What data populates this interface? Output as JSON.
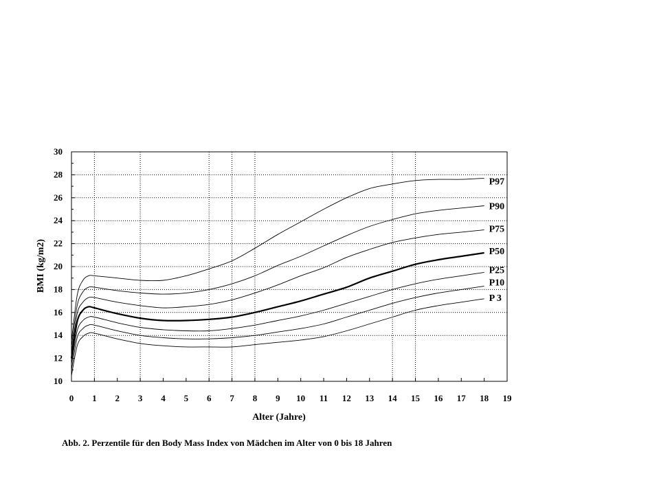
{
  "caption": "Abb. 2. Perzentile für den Body Mass Index von Mädchen im Alter von 0 bis 18 Jahren",
  "chart_data": {
    "type": "line",
    "xlabel": "Alter (Jahre)",
    "ylabel": "BMI (kg/m2)",
    "xlim": [
      0,
      19
    ],
    "ylim": [
      10,
      30
    ],
    "x_ticks": [
      0,
      1,
      2,
      3,
      4,
      5,
      6,
      7,
      8,
      9,
      10,
      11,
      12,
      13,
      14,
      15,
      16,
      17,
      18,
      19
    ],
    "y_ticks": [
      10,
      12,
      14,
      16,
      18,
      20,
      22,
      24,
      26,
      28,
      30
    ],
    "horizontal_grid": [
      14,
      16,
      18,
      20,
      22,
      24,
      26,
      28
    ],
    "vertical_grid": [
      1,
      3,
      6,
      7,
      8,
      14,
      15
    ],
    "grid_style": "dotted",
    "series": [
      {
        "name": "P97",
        "emphasis": false,
        "x": [
          0,
          0.25,
          0.5,
          0.75,
          1,
          2,
          3,
          4,
          5,
          6,
          7,
          8,
          9,
          10,
          11,
          12,
          13,
          14,
          15,
          16,
          17,
          18
        ],
        "values": [
          13.5,
          17.5,
          18.8,
          19.2,
          19.2,
          19.0,
          18.8,
          18.8,
          19.2,
          19.8,
          20.5,
          21.6,
          22.8,
          23.9,
          25.0,
          26.0,
          26.8,
          27.2,
          27.5,
          27.6,
          27.6,
          27.7
        ]
      },
      {
        "name": "P90",
        "emphasis": false,
        "x": [
          0,
          0.25,
          0.5,
          0.75,
          1,
          2,
          3,
          4,
          5,
          6,
          7,
          8,
          9,
          10,
          11,
          12,
          13,
          14,
          15,
          16,
          17,
          18
        ],
        "values": [
          13.0,
          16.6,
          17.8,
          18.2,
          18.2,
          17.9,
          17.7,
          17.6,
          17.7,
          18.0,
          18.5,
          19.2,
          20.1,
          20.9,
          21.8,
          22.7,
          23.5,
          24.1,
          24.6,
          24.9,
          25.1,
          25.3
        ]
      },
      {
        "name": "P75",
        "emphasis": false,
        "x": [
          0,
          0.25,
          0.5,
          0.75,
          1,
          2,
          3,
          4,
          5,
          6,
          7,
          8,
          9,
          10,
          11,
          12,
          13,
          14,
          15,
          16,
          17,
          18
        ],
        "values": [
          12.5,
          15.9,
          16.9,
          17.3,
          17.3,
          16.9,
          16.6,
          16.4,
          16.5,
          16.7,
          17.1,
          17.7,
          18.4,
          19.2,
          19.9,
          20.8,
          21.5,
          22.1,
          22.5,
          22.8,
          23.0,
          23.2
        ]
      },
      {
        "name": "P50",
        "emphasis": true,
        "x": [
          0,
          0.25,
          0.5,
          0.75,
          1,
          2,
          3,
          4,
          5,
          6,
          7,
          8,
          9,
          10,
          11,
          12,
          13,
          14,
          15,
          16,
          17,
          18
        ],
        "values": [
          12.0,
          15.2,
          16.2,
          16.5,
          16.4,
          15.9,
          15.5,
          15.3,
          15.3,
          15.4,
          15.6,
          16.0,
          16.5,
          17.0,
          17.6,
          18.2,
          19.0,
          19.6,
          20.2,
          20.6,
          20.9,
          21.2
        ]
      },
      {
        "name": "P25",
        "emphasis": false,
        "x": [
          0,
          0.25,
          0.5,
          0.75,
          1,
          2,
          3,
          4,
          5,
          6,
          7,
          8,
          9,
          10,
          11,
          12,
          13,
          14,
          15,
          16,
          17,
          18
        ],
        "values": [
          11.5,
          14.4,
          15.3,
          15.6,
          15.6,
          15.1,
          14.7,
          14.5,
          14.4,
          14.4,
          14.6,
          14.9,
          15.3,
          15.7,
          16.2,
          16.8,
          17.4,
          18.0,
          18.5,
          18.9,
          19.2,
          19.5
        ]
      },
      {
        "name": "P10",
        "emphasis": false,
        "x": [
          0,
          0.25,
          0.5,
          0.75,
          1,
          2,
          3,
          4,
          5,
          6,
          7,
          8,
          9,
          10,
          11,
          12,
          13,
          14,
          15,
          16,
          17,
          18
        ],
        "values": [
          11.0,
          13.8,
          14.6,
          14.9,
          14.9,
          14.4,
          14.0,
          13.8,
          13.7,
          13.7,
          13.8,
          14.0,
          14.3,
          14.6,
          15.0,
          15.6,
          16.2,
          16.8,
          17.3,
          17.7,
          18.0,
          18.3
        ]
      },
      {
        "name": "P 3",
        "emphasis": false,
        "x": [
          0,
          0.25,
          0.5,
          0.75,
          1,
          2,
          3,
          4,
          5,
          6,
          7,
          8,
          9,
          10,
          11,
          12,
          13,
          14,
          15,
          16,
          17,
          18
        ],
        "values": [
          10.5,
          13.1,
          13.9,
          14.2,
          14.2,
          13.7,
          13.3,
          13.1,
          13.0,
          13.0,
          13.0,
          13.2,
          13.4,
          13.6,
          13.9,
          14.4,
          15.0,
          15.6,
          16.2,
          16.6,
          16.9,
          17.2
        ]
      }
    ]
  }
}
